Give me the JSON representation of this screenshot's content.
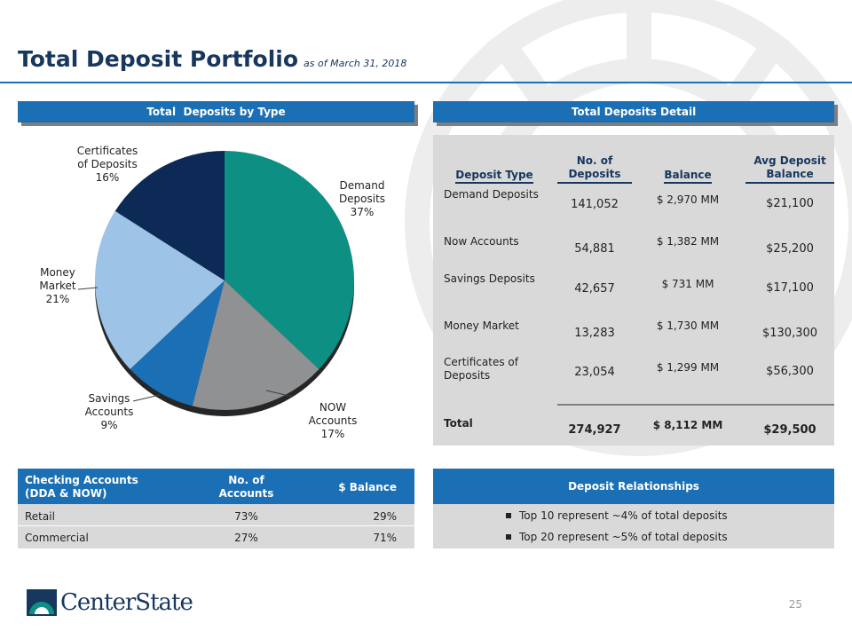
{
  "header": {
    "title": "Total Deposit Portfolio",
    "subtitle": "as of March 31, 2018"
  },
  "left_header": "Total  Deposits by Type",
  "right_header": "Total Deposits Detail",
  "chart_data": {
    "type": "pie",
    "categories": [
      "Demand Deposits",
      "NOW Accounts",
      "Savings Accounts",
      "Money Market",
      "Certificates of Deposits"
    ],
    "values": [
      37,
      17,
      9,
      21,
      16
    ],
    "value_labels": [
      "37%",
      "17%",
      "9%",
      "21%",
      "16%"
    ],
    "colors": [
      "#0E8F83",
      "#8F9193",
      "#1A6FB5",
      "#9DC3E6",
      "#0D2A57"
    ]
  },
  "detail_table": {
    "columns": [
      "Deposit Type",
      "No. of Deposits",
      "Balance",
      "Avg Deposit Balance"
    ],
    "rows": [
      [
        "Demand Deposits",
        "141,052",
        "$ 2,970 MM",
        "$21,100"
      ],
      [
        "Now Accounts",
        "54,881",
        "$ 1,382 MM",
        "$25,200"
      ],
      [
        "Savings Deposits",
        "42,657",
        "$ 731 MM",
        "$17,100"
      ],
      [
        "Money Market",
        "13,283",
        "$ 1,730 MM",
        "$130,300"
      ],
      [
        "Certificates of Deposits",
        "23,054",
        "$ 1,299 MM",
        "$56,300"
      ]
    ],
    "total": [
      "Total",
      "274,927",
      "$ 8,112 MM",
      "$29,500"
    ]
  },
  "checking_table": {
    "columns": [
      "Checking Accounts (DDA & NOW)",
      "No. of Accounts",
      "$ Balance"
    ],
    "rows": [
      [
        "Retail",
        "73%",
        "29%"
      ],
      [
        "Commercial",
        "27%",
        "71%"
      ]
    ]
  },
  "relationships": {
    "title": "Deposit Relationships",
    "items": [
      "Top 10 represent ~4% of total deposits",
      "Top 20 represent ~5% of total deposits"
    ]
  },
  "logo": "CenterState",
  "page_number": "25"
}
